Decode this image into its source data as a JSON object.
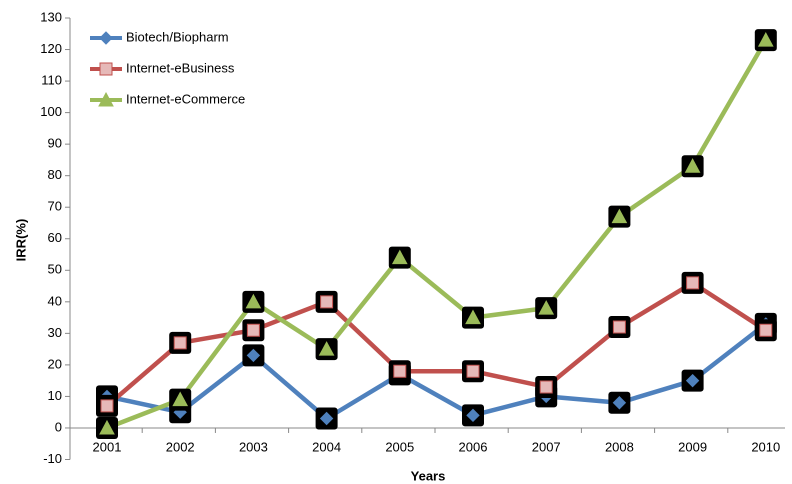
{
  "chart_data": {
    "type": "line",
    "x_label": "Years",
    "y_label": "IRR(%)",
    "categories": [
      "2001",
      "2002",
      "2003",
      "2004",
      "2005",
      "2006",
      "2007",
      "2008",
      "2009",
      "2010"
    ],
    "series": [
      {
        "name": "Biotech/Biopharm",
        "color": "#4f81bd",
        "marker": "diamond",
        "values": [
          10,
          5,
          23,
          3,
          17,
          4,
          10,
          8,
          15,
          33
        ]
      },
      {
        "name": "Internet-eBusiness",
        "color": "#c0504d",
        "marker": "square",
        "values": [
          7,
          27,
          31,
          40,
          18,
          18,
          13,
          32,
          46,
          31
        ]
      },
      {
        "name": "Internet-eCommerce",
        "color": "#9bbb59",
        "marker": "triangle",
        "values": [
          0,
          9,
          40,
          25,
          54,
          35,
          38,
          67,
          83,
          123
        ]
      }
    ],
    "ylim": [
      -10,
      130
    ],
    "yticks": [
      -10,
      0,
      10,
      20,
      30,
      40,
      50,
      60,
      70,
      80,
      90,
      100,
      110,
      120,
      130
    ],
    "legend": "upper left"
  }
}
